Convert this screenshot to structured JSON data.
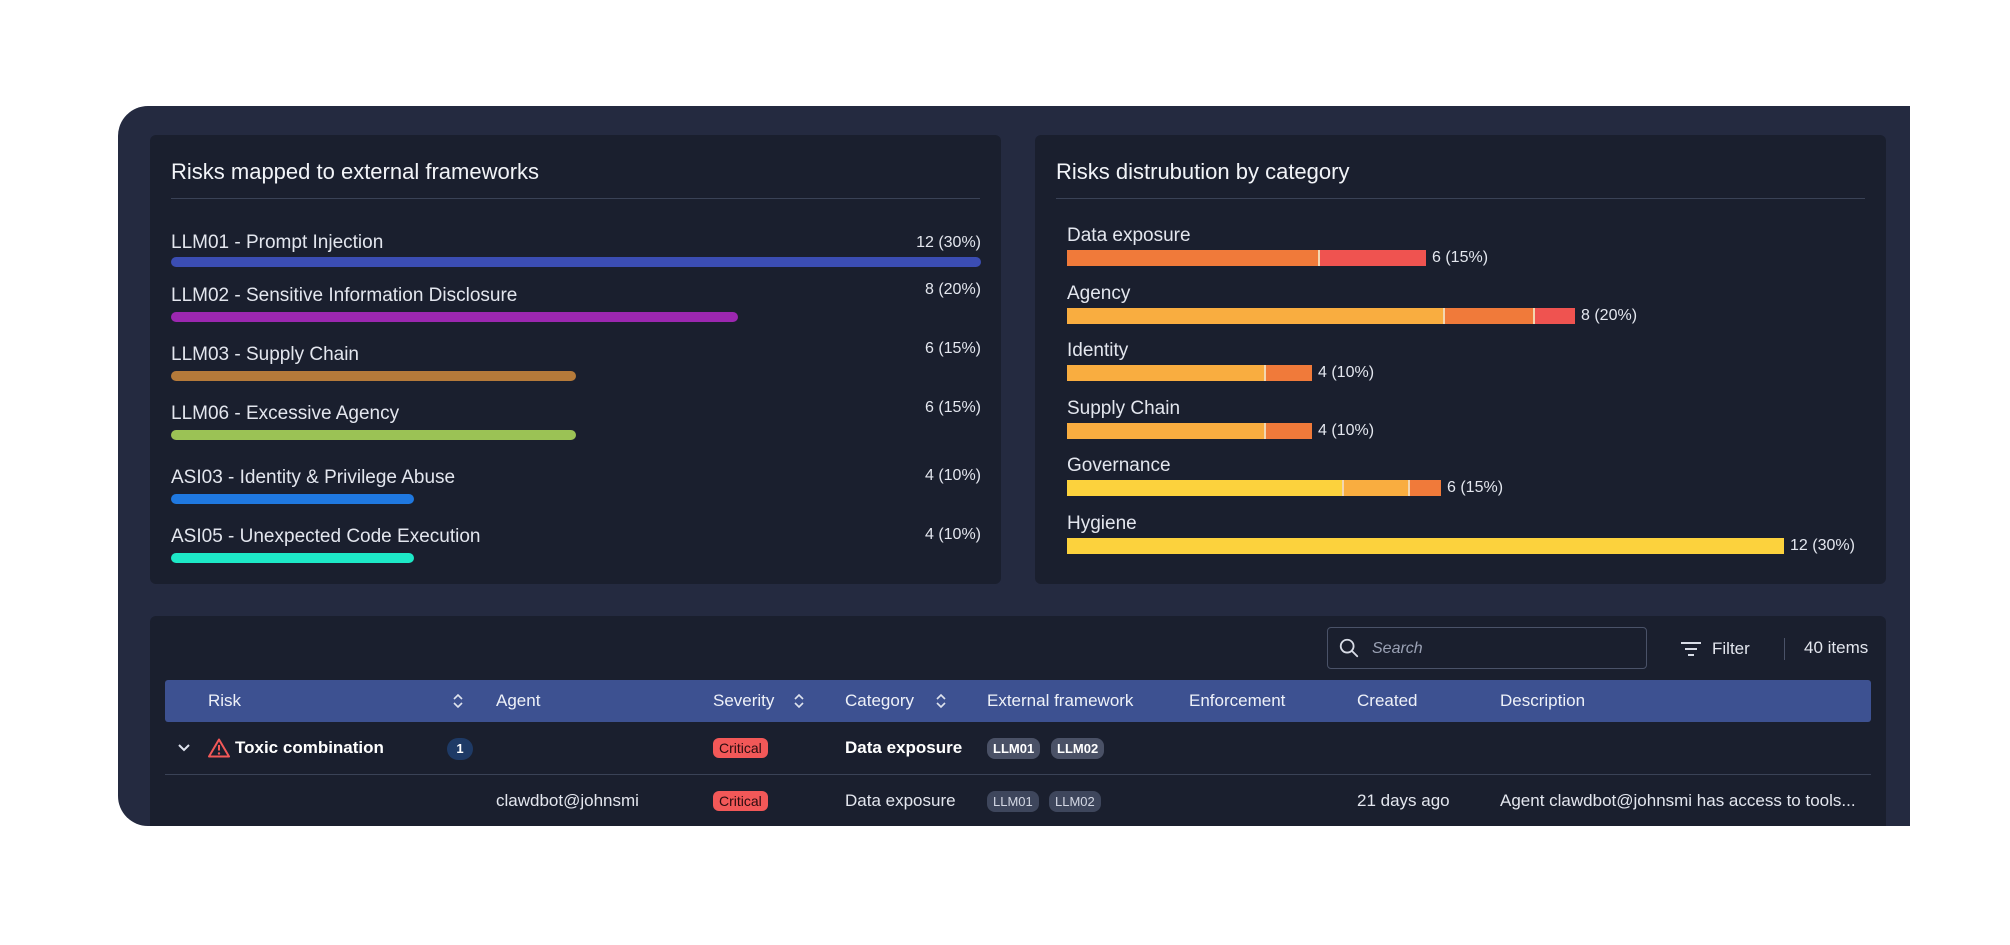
{
  "frameworks_panel": {
    "title": "Risks mapped to external frameworks",
    "rows": [
      {
        "label": "LLM01 - Prompt Injection",
        "value_text": "12 (30%)",
        "fraction": 1.0,
        "color": "#3b4db3"
      },
      {
        "label": "LLM02 - Sensitive Information Disclosure",
        "value_text": "8 (20%)",
        "fraction": 0.7,
        "color": "#9c27b0"
      },
      {
        "label": "LLM03 - Supply Chain",
        "value_text": "6 (15%)",
        "fraction": 0.5,
        "color": "#b57a3a"
      },
      {
        "label": "LLM06 - Excessive Agency",
        "value_text": "6 (15%)",
        "fraction": 0.5,
        "color": "#9bc255"
      },
      {
        "label": "ASI03 - Identity & Privilege Abuse",
        "value_text": "4 (10%)",
        "fraction": 0.3,
        "color": "#1f78e0"
      },
      {
        "label": "ASI05 - Unexpected Code Execution",
        "value_text": "4 (10%)",
        "fraction": 0.3,
        "color": "#1de8c7"
      }
    ]
  },
  "category_panel": {
    "title": "Risks distrubution by category",
    "max_count": 12,
    "rows": [
      {
        "label": "Data exposure",
        "value_text": "6 (15%)",
        "segments": [
          {
            "count": 4.2,
            "color": "#f07a3a"
          },
          {
            "count": 1.8,
            "color": "#ef5350"
          }
        ]
      },
      {
        "label": "Agency",
        "value_text": "8 (20%)",
        "segments": [
          {
            "count": 6.3,
            "color": "#f9ad40"
          },
          {
            "count": 1.5,
            "color": "#f07a3a"
          },
          {
            "count": 0.7,
            "color": "#ef5350"
          }
        ]
      },
      {
        "label": "Identity",
        "value_text": "4 (10%)",
        "segments": [
          {
            "count": 3.3,
            "color": "#f9ad40"
          },
          {
            "count": 0.8,
            "color": "#f07a3a"
          }
        ]
      },
      {
        "label": "Supply Chain",
        "value_text": "4 (10%)",
        "segments": [
          {
            "count": 3.3,
            "color": "#f9ad40"
          },
          {
            "count": 0.8,
            "color": "#f07a3a"
          }
        ]
      },
      {
        "label": "Governance",
        "value_text": "6 (15%)",
        "segments": [
          {
            "count": 4.6,
            "color": "#fcd23d"
          },
          {
            "count": 1.1,
            "color": "#f9ad40"
          },
          {
            "count": 0.55,
            "color": "#f07a3a"
          }
        ]
      },
      {
        "label": "Hygiene",
        "value_text": "12 (30%)",
        "segments": [
          {
            "count": 12,
            "color": "#fcd23d"
          }
        ]
      }
    ]
  },
  "toolbar": {
    "search_placeholder": "Search",
    "filter_label": "Filter",
    "items_count": "40 items"
  },
  "table": {
    "columns": {
      "risk": "Risk",
      "agent": "Agent",
      "severity": "Severity",
      "category": "Category",
      "external_framework": "External framework",
      "enforcement": "Enforcement",
      "created": "Created",
      "description": "Description"
    },
    "group_row": {
      "risk": "Toxic combination",
      "count": "1",
      "severity": "Critical",
      "category": "Data exposure",
      "frameworks": [
        "LLM01",
        "LLM02"
      ]
    },
    "rows": [
      {
        "agent": "clawdbot@johnsmi",
        "severity": "Critical",
        "category": "Data exposure",
        "frameworks": [
          "LLM01",
          "LLM02"
        ],
        "created": "21 days ago",
        "description": "Agent clawdbot@johnsmi has access to tools..."
      }
    ]
  }
}
